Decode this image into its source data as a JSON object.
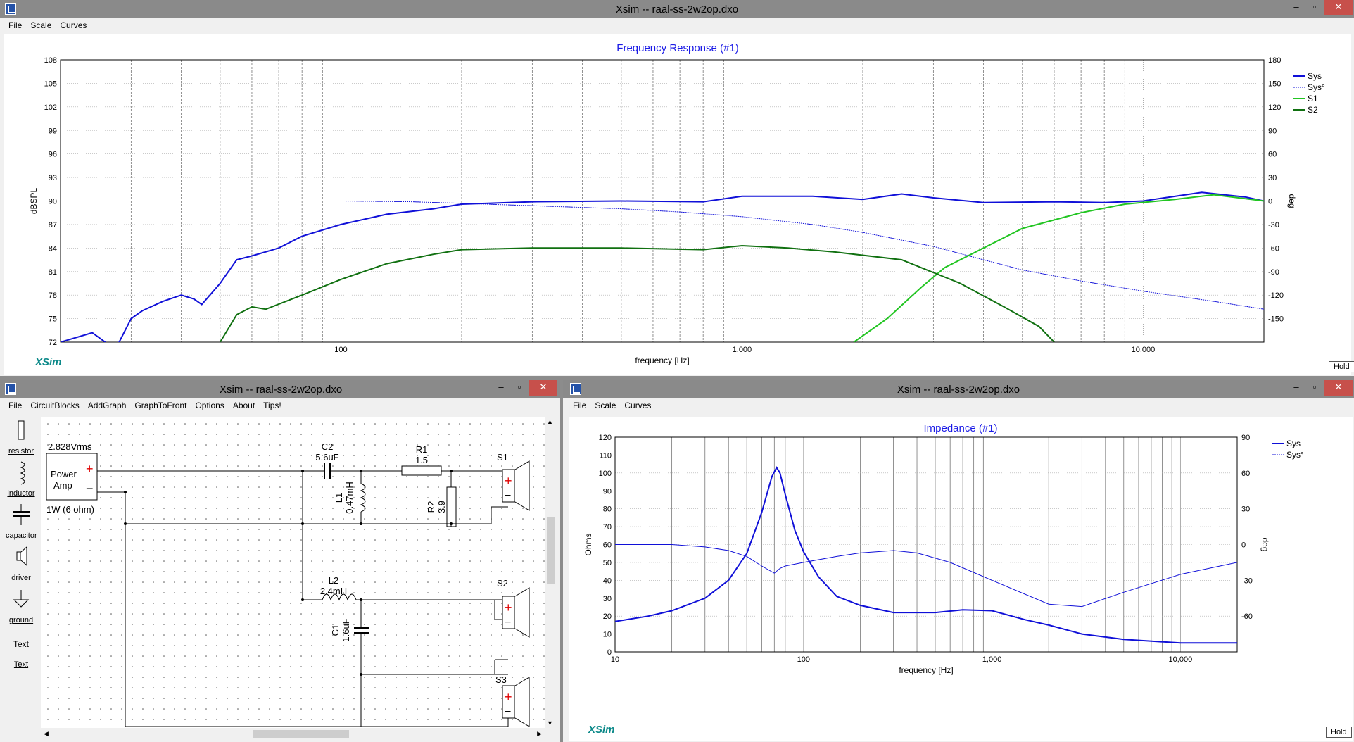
{
  "top_window": {
    "title": "Xsim -- raal-ss-2w2op.dxo",
    "menu": [
      "File",
      "Scale",
      "Curves"
    ],
    "graph_title": "Frequency Response (#1)",
    "y_label": "dBSPL",
    "y2_label": "deg",
    "x_label": "frequency [Hz]",
    "legend": [
      "Sys",
      "Sys°",
      "S1",
      "S2"
    ],
    "logo": "XSim",
    "hold": "Hold"
  },
  "circuit_window": {
    "title": "Xsim -- raal-ss-2w2op.dxo",
    "menu": [
      "File",
      "CircuitBlocks",
      "AddGraph",
      "GraphToFront",
      "Options",
      "About",
      "Tips!"
    ],
    "tools": [
      "resistor",
      "inductor",
      "capacitor",
      "driver",
      "ground",
      "Text",
      "Text"
    ],
    "labels": {
      "vrms": "2.828Vrms",
      "amp1": "Power",
      "amp2": "Amp",
      "power": "1W (6 ohm)",
      "c2": "C2",
      "c2v": "5.6uF",
      "r1": "R1",
      "r1v": "1.5",
      "l1": "L1",
      "l1v": "0.47mH",
      "r2": "R2",
      "r2v": "3.9",
      "s1": "S1",
      "l2": "L2",
      "l2v": "2.4mH",
      "s2": "S2",
      "c1": "C1",
      "c1v": "1.6uF",
      "s3": "S3"
    }
  },
  "imp_window": {
    "title": "Xsim -- raal-ss-2w2op.dxo",
    "menu": [
      "File",
      "Scale",
      "Curves"
    ],
    "graph_title": "Impedance (#1)",
    "y_label": "Ohms",
    "y2_label": "deg",
    "x_label": "frequency [Hz]",
    "legend": [
      "Sys",
      "Sys°"
    ],
    "logo": "XSim",
    "hold": "Hold"
  },
  "colors": {
    "sys": "#1010d8",
    "s1": "#22c522",
    "s2": "#107010",
    "title": "#1a1ae6",
    "grid": "#888888"
  },
  "chart_data": [
    {
      "type": "line",
      "title": "Frequency Response (#1)",
      "xlabel": "frequency [Hz]",
      "ylabel": "dBSPL",
      "y2label": "deg",
      "xscale": "log",
      "xlim": [
        20,
        20000
      ],
      "ylim": [
        72,
        108
      ],
      "y2lim": [
        -180,
        180
      ],
      "xticks": [
        "100",
        "1,000",
        "10,000"
      ],
      "yticks": [
        108,
        105,
        102,
        99,
        96,
        93,
        90,
        87,
        84,
        81,
        78,
        75,
        72
      ],
      "y2ticks": [
        180,
        150,
        120,
        90,
        60,
        30,
        0,
        -30,
        -60,
        -90,
        -120,
        -150
      ],
      "legend": "top-right",
      "series": [
        {
          "name": "Sys",
          "axis": "left",
          "x": [
            20,
            24,
            27,
            28,
            30,
            32,
            36,
            40,
            43,
            45,
            50,
            55,
            60,
            70,
            80,
            100,
            130,
            170,
            200,
            300,
            500,
            800,
            1000,
            1500,
            2000,
            2500,
            3000,
            4000,
            6000,
            8000,
            10000,
            14000,
            18000,
            20000
          ],
          "y": [
            72.0,
            73.2,
            71.3,
            72.0,
            75.0,
            76.0,
            77.2,
            78.0,
            77.5,
            76.8,
            79.5,
            82.5,
            83.0,
            84.0,
            85.5,
            87.0,
            88.3,
            89.0,
            89.6,
            89.9,
            90.0,
            89.9,
            90.6,
            90.6,
            90.2,
            90.9,
            90.4,
            89.8,
            89.9,
            89.8,
            90.0,
            91.1,
            90.5,
            90.0
          ]
        },
        {
          "name": "Sys°",
          "axis": "right",
          "x": [
            20,
            50,
            100,
            150,
            200,
            300,
            500,
            700,
            1000,
            1500,
            2000,
            3000,
            4000,
            5000,
            7000,
            10000,
            15000,
            20000
          ],
          "y": [
            0,
            0,
            0,
            -1,
            -3,
            -6,
            -10,
            -14,
            -20,
            -30,
            -40,
            -58,
            -75,
            -88,
            -102,
            -115,
            -128,
            -138
          ]
        },
        {
          "name": "S1",
          "axis": "left",
          "x": [
            1900,
            2300,
            2800,
            3200,
            4000,
            5000,
            7000,
            9000,
            12000,
            15000,
            20000
          ],
          "y": [
            72.0,
            75.0,
            79.0,
            81.5,
            84.0,
            86.5,
            88.5,
            89.6,
            90.2,
            90.8,
            90.0
          ]
        },
        {
          "name": "S2",
          "axis": "left",
          "x": [
            50,
            55,
            60,
            65,
            80,
            100,
            130,
            170,
            200,
            300,
            500,
            800,
            1000,
            1300,
            1700,
            2500,
            3500,
            4500,
            5500,
            6000
          ],
          "y": [
            72.0,
            75.5,
            76.5,
            76.2,
            78.0,
            80.0,
            82.0,
            83.2,
            83.8,
            84.0,
            84.0,
            83.8,
            84.3,
            84.0,
            83.5,
            82.5,
            79.5,
            76.5,
            74.0,
            72.0
          ]
        }
      ]
    },
    {
      "type": "line",
      "title": "Impedance (#1)",
      "xlabel": "frequency [Hz]",
      "ylabel": "Ohms",
      "y2label": "deg",
      "xscale": "log",
      "xlim": [
        10,
        20000
      ],
      "ylim": [
        0,
        120
      ],
      "y2lim": [
        -90,
        90
      ],
      "xticks": [
        "10",
        "100",
        "1,000",
        "10,000"
      ],
      "yticks": [
        120,
        110,
        100,
        90,
        80,
        70,
        60,
        50,
        40,
        30,
        20,
        10,
        0
      ],
      "y2ticks": [
        90,
        60,
        30,
        0,
        -30,
        -60
      ],
      "legend": "top-right",
      "series": [
        {
          "name": "Sys",
          "axis": "left",
          "x": [
            10,
            15,
            20,
            30,
            40,
            50,
            60,
            68,
            72,
            75,
            80,
            90,
            100,
            120,
            150,
            200,
            300,
            500,
            700,
            1000,
            1500,
            2000,
            3000,
            5000,
            10000,
            20000
          ],
          "y": [
            17,
            20,
            23,
            30,
            40,
            55,
            78,
            98,
            103,
            100,
            88,
            68,
            56,
            42,
            31,
            26,
            22,
            22,
            23.5,
            23,
            18,
            15,
            10,
            7,
            5,
            5
          ]
        },
        {
          "name": "Sys°",
          "axis": "right",
          "x": [
            10,
            20,
            30,
            40,
            50,
            60,
            70,
            75,
            80,
            100,
            150,
            200,
            300,
            400,
            600,
            1000,
            2000,
            3000,
            5000,
            10000,
            20000
          ],
          "y": [
            0,
            0,
            -2,
            -5,
            -10,
            -18,
            -24,
            -20,
            -18,
            -15,
            -10,
            -7,
            -5,
            -7,
            -15,
            -30,
            -50,
            -52,
            -40,
            -25,
            -15
          ]
        }
      ]
    }
  ]
}
